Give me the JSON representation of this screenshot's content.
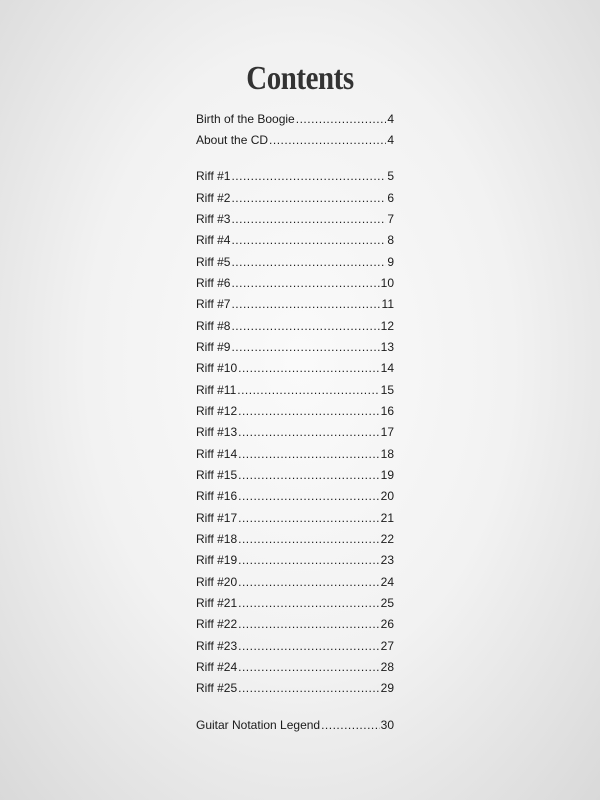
{
  "title": "Contents",
  "intro": [
    {
      "label": "Birth of the Boogie",
      "page": "4"
    },
    {
      "label": "About the CD",
      "page": "4"
    }
  ],
  "riffs": [
    {
      "label": "Riff #1",
      "page": "5"
    },
    {
      "label": "Riff #2",
      "page": "6"
    },
    {
      "label": "Riff #3",
      "page": "7"
    },
    {
      "label": "Riff #4",
      "page": "8"
    },
    {
      "label": "Riff #5",
      "page": "9"
    },
    {
      "label": "Riff #6",
      "page": "10"
    },
    {
      "label": "Riff #7",
      "page": "11"
    },
    {
      "label": "Riff #8",
      "page": "12"
    },
    {
      "label": "Riff #9",
      "page": "13"
    },
    {
      "label": "Riff #10",
      "page": "14"
    },
    {
      "label": "Riff #11",
      "page": "15"
    },
    {
      "label": "Riff #12",
      "page": "16"
    },
    {
      "label": "Riff #13",
      "page": "17"
    },
    {
      "label": "Riff #14",
      "page": "18"
    },
    {
      "label": "Riff #15",
      "page": "19"
    },
    {
      "label": "Riff #16",
      "page": "20"
    },
    {
      "label": "Riff #17",
      "page": "21"
    },
    {
      "label": "Riff #18",
      "page": "22"
    },
    {
      "label": "Riff #19",
      "page": "23"
    },
    {
      "label": "Riff #20",
      "page": "24"
    },
    {
      "label": "Riff #21",
      "page": "25"
    },
    {
      "label": "Riff #22",
      "page": "26"
    },
    {
      "label": "Riff #23",
      "page": "27"
    },
    {
      "label": "Riff #24",
      "page": "28"
    },
    {
      "label": "Riff #25",
      "page": "29"
    }
  ],
  "outro": [
    {
      "label": "Guitar Notation Legend",
      "page": "30"
    }
  ]
}
